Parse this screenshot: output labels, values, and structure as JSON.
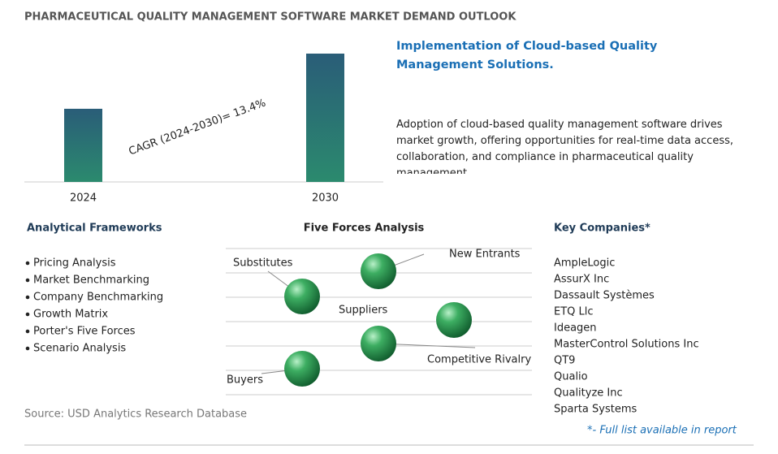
{
  "title": "PHARMACEUTICAL QUALITY MANAGEMENT SOFTWARE MARKET DEMAND OUTLOOK",
  "chart_data": {
    "type": "bar",
    "categories": [
      "2024",
      "2030"
    ],
    "values": [
      57,
      100
    ],
    "annotation": "CAGR (2024-2030)=  13.4%"
  },
  "highlight": {
    "heading": "Implementation of Cloud-based Quality Management Solutions.",
    "text": "Adoption of cloud-based quality management software drives market growth, offering opportunities for real-time data access, collaboration, and compliance in pharmaceutical quality management."
  },
  "frameworks": {
    "heading": "Analytical Frameworks",
    "items": [
      "Pricing Analysis",
      "Market Benchmarking",
      "Company Benchmarking",
      "Growth Matrix",
      "Porter's Five Forces",
      "Scenario Analysis"
    ]
  },
  "five_forces": {
    "heading": "Five Forces Analysis",
    "labels": [
      "New Entrants",
      "Substitutes",
      "Suppliers",
      "Competitive Rivalry",
      "Buyers"
    ]
  },
  "companies": {
    "heading": "Key Companies*",
    "items": [
      "AmpleLogic",
      "AssurX Inc",
      "Dassault Systèmes",
      "ETQ Llc",
      "Ideagen",
      "MasterControl Solutions Inc",
      "QT9",
      "Qualio",
      "Qualityze Inc",
      "Sparta Systems"
    ],
    "note": "*- Full list available in report"
  },
  "source": "Source: USD Analytics Research Database"
}
